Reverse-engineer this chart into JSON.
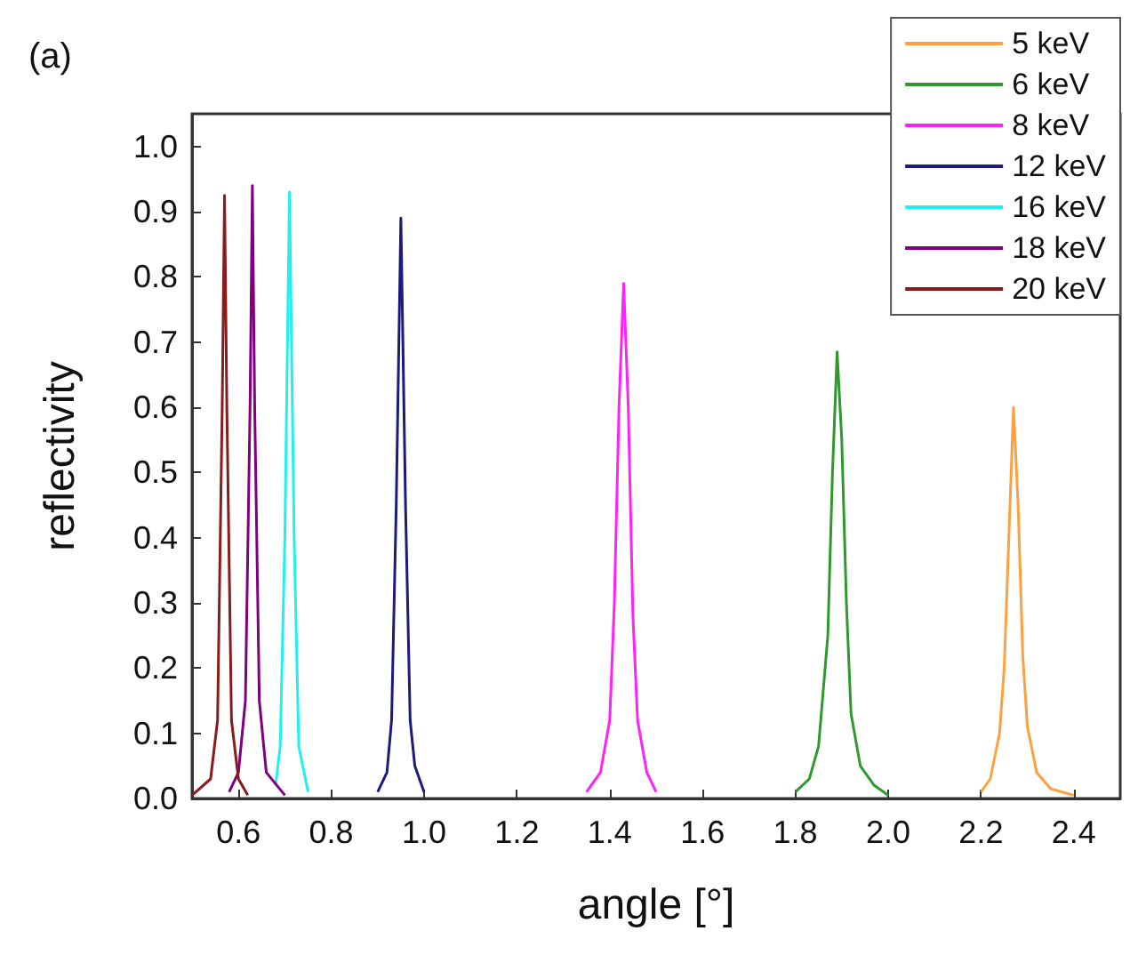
{
  "chart_data": {
    "type": "line",
    "xlabel": "angle [°]",
    "ylabel": "reflectivity",
    "annotations": [
      "(a)"
    ],
    "xlim": [
      0.5,
      2.5
    ],
    "xticks": [
      0.6,
      0.8,
      {
        "value": 1,
        "label": "1.0"
      },
      1.2,
      1.4,
      1.6,
      1.8,
      {
        "value": 2,
        "label": "2.0"
      },
      2.2,
      2.4
    ],
    "ylim": [
      0,
      1.05
    ],
    "yticks": [
      {
        "value": 0,
        "label": "0.0"
      },
      0.1,
      0.2,
      0.3,
      0.4,
      0.5,
      0.6,
      0.7,
      0.8,
      0.9,
      {
        "value": 1,
        "label": "1.0"
      }
    ],
    "grid": false,
    "legend": "top right",
    "marker": "none",
    "line_style": "solid",
    "series": [
      {
        "name": "5 keV",
        "color": "#ffa040",
        "x": [
          2.2,
          2.22,
          2.24,
          2.25,
          2.26,
          2.27,
          2.28,
          2.29,
          2.3,
          2.32,
          2.35,
          2.4
        ],
        "values": [
          0.01,
          0.03,
          0.1,
          0.2,
          0.4,
          0.6,
          0.45,
          0.22,
          0.11,
          0.04,
          0.015,
          0.005
        ]
      },
      {
        "name": "6 keV",
        "color": "#2e9a2e",
        "x": [
          1.8,
          1.83,
          1.85,
          1.87,
          1.88,
          1.89,
          1.9,
          1.91,
          1.92,
          1.94,
          1.97,
          2.0
        ],
        "values": [
          0.01,
          0.03,
          0.08,
          0.25,
          0.5,
          0.685,
          0.55,
          0.3,
          0.13,
          0.05,
          0.02,
          0.005
        ]
      },
      {
        "name": "8 keV",
        "color": "#ff20ff",
        "x": [
          1.35,
          1.38,
          1.4,
          1.41,
          1.42,
          1.43,
          1.44,
          1.45,
          1.46,
          1.48,
          1.5
        ],
        "values": [
          0.01,
          0.04,
          0.12,
          0.3,
          0.6,
          0.79,
          0.6,
          0.28,
          0.12,
          0.04,
          0.01
        ]
      },
      {
        "name": "12 keV",
        "color": "#1a1a80",
        "x": [
          0.9,
          0.92,
          0.93,
          0.94,
          0.95,
          0.96,
          0.97,
          0.98,
          1.0
        ],
        "values": [
          0.01,
          0.04,
          0.12,
          0.45,
          0.89,
          0.45,
          0.12,
          0.05,
          0.01
        ]
      },
      {
        "name": "16 keV",
        "color": "#20f0f0",
        "x": [
          0.68,
          0.69,
          0.7,
          0.71,
          0.72,
          0.73,
          0.75
        ],
        "values": [
          0.02,
          0.08,
          0.4,
          0.93,
          0.4,
          0.08,
          0.01
        ]
      },
      {
        "name": "18 keV",
        "color": "#800080",
        "x": [
          0.58,
          0.6,
          0.615,
          0.625,
          0.63,
          0.635,
          0.645,
          0.66,
          0.7
        ],
        "values": [
          0.01,
          0.04,
          0.15,
          0.6,
          0.94,
          0.6,
          0.15,
          0.04,
          0.005
        ]
      },
      {
        "name": "20 keV",
        "color": "#8b1a1a",
        "x": [
          0.5,
          0.54,
          0.555,
          0.565,
          0.57,
          0.575,
          0.585,
          0.6,
          0.62
        ],
        "values": [
          0.005,
          0.03,
          0.12,
          0.6,
          0.925,
          0.6,
          0.12,
          0.03,
          0.005
        ]
      }
    ]
  }
}
